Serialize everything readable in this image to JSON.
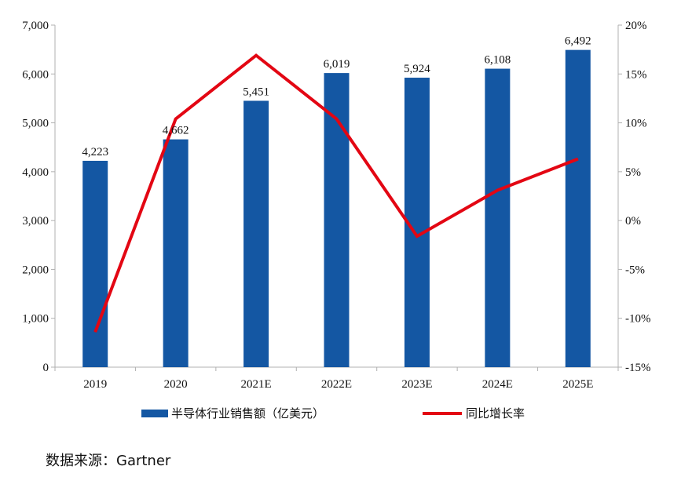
{
  "chart_data": {
    "type": "bar",
    "categories": [
      "2019",
      "2020",
      "2021E",
      "2022E",
      "2023E",
      "2024E",
      "2025E"
    ],
    "series": [
      {
        "name": "半导体行业销售额（亿美元）",
        "type": "bar",
        "axis": "left",
        "values": [
          4223,
          4662,
          5451,
          6019,
          5924,
          6108,
          6492
        ],
        "labels": [
          "4,223",
          "4,662",
          "5,451",
          "6,019",
          "5,924",
          "6,108",
          "6,492"
        ],
        "color": "#1457A3"
      },
      {
        "name": "同比增长率",
        "type": "line",
        "axis": "right",
        "values": [
          -11.4,
          10.4,
          16.9,
          10.4,
          -1.6,
          3.1,
          6.3
        ],
        "color": "#E30613"
      }
    ],
    "y_left": {
      "ylim": [
        0,
        7000
      ],
      "ticks": [
        0,
        1000,
        2000,
        3000,
        4000,
        5000,
        6000,
        7000
      ],
      "tick_labels": [
        "0",
        "1,000",
        "2,000",
        "3,000",
        "4,000",
        "5,000",
        "6,000",
        "7,000"
      ]
    },
    "y_right": {
      "ylim": [
        -15,
        20
      ],
      "ticks": [
        -15,
        -10,
        -5,
        0,
        5,
        10,
        15,
        20
      ],
      "tick_labels": [
        "-15%",
        "-10%",
        "-5%",
        "0%",
        "5%",
        "10%",
        "15%",
        "20%"
      ]
    },
    "grid": false,
    "legend_position": "bottom"
  },
  "source": "数据来源：Gartner"
}
